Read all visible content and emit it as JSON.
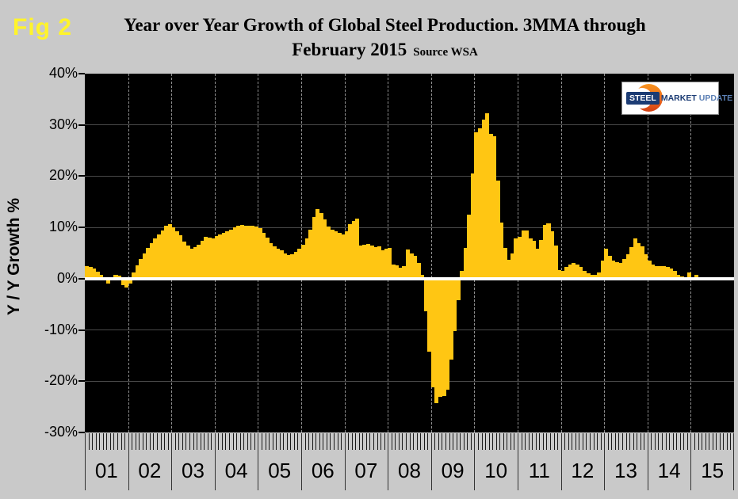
{
  "figure_label": "Fig 2",
  "title": {
    "line1": "Year over Year Growth of Global Steel Production. 3MMA through",
    "line2": "February 2015",
    "source": "Source WSA"
  },
  "logo": {
    "steel": "STEEL",
    "market": "MARKET",
    "update": "UPDATE"
  },
  "colors": {
    "page_bg": "#C9C9C9",
    "plot_bg": "#000000",
    "bar": "#FFC613",
    "zero_line": "#FFFFFF",
    "grid": "#4A4A4A",
    "year_dash": "#8F8F8F",
    "fig_label": "#FFF42A",
    "logo_navy": "#1C3C74",
    "logo_update_blue": "#5C80B5",
    "logo_orange": "#EE6A1E"
  },
  "chart_data": {
    "type": "bar",
    "title": "Year over Year Growth of Global Steel Production. 3MMA through February 2015",
    "subtitle_source": "Source WSA",
    "xlabel": "",
    "ylabel": "Y / Y Growth %",
    "ylim": [
      -30,
      40
    ],
    "y_ticks": [
      {
        "label": "40%",
        "value": 40
      },
      {
        "label": "30%",
        "value": 30
      },
      {
        "label": "20%",
        "value": 20
      },
      {
        "label": "10%",
        "value": 10
      },
      {
        "label": "0%",
        "value": 0
      },
      {
        "label": "-10%",
        "value": -10
      },
      {
        "label": "-20%",
        "value": -20
      },
      {
        "label": "-30%",
        "value": -30
      }
    ],
    "grid": "horizontal 10% lines, dashed vertical year separators",
    "legend": "none",
    "frequency": "monthly (3-month moving average), Jan 2001 - Feb 2015",
    "unit": "percent YoY growth",
    "years": [
      {
        "label": "01",
        "values": [
          2.4,
          2.3,
          2.0,
          1.4,
          0.8,
          0.2,
          -1.0,
          -0.4,
          0.8,
          0.6,
          -1.2,
          -1.7
        ]
      },
      {
        "label": "02",
        "values": [
          -1.0,
          1.2,
          2.6,
          3.8,
          5.0,
          6.0,
          7.0,
          7.9,
          8.7,
          9.4,
          10.3,
          10.6
        ]
      },
      {
        "label": "03",
        "values": [
          10.0,
          9.2,
          8.4,
          7.2,
          6.4,
          5.9,
          6.1,
          6.6,
          7.4,
          8.2,
          8.0,
          7.9
        ]
      },
      {
        "label": "04",
        "values": [
          8.3,
          8.6,
          8.9,
          9.2,
          9.6,
          10.0,
          10.4,
          10.5,
          10.4,
          10.4,
          10.3,
          10.2
        ]
      },
      {
        "label": "05",
        "values": [
          9.8,
          9.0,
          8.0,
          7.0,
          6.3,
          5.8,
          5.5,
          5.0,
          4.6,
          4.8,
          5.3,
          5.8
        ]
      },
      {
        "label": "06",
        "values": [
          6.6,
          7.8,
          9.6,
          12.0,
          13.5,
          12.8,
          11.5,
          10.2,
          9.5,
          9.2,
          8.9,
          8.7
        ]
      },
      {
        "label": "07",
        "values": [
          9.2,
          10.6,
          11.3,
          11.7,
          6.5,
          6.6,
          6.8,
          6.5,
          6.1,
          6.3,
          5.5,
          5.8
        ]
      },
      {
        "label": "08",
        "values": [
          6.0,
          2.8,
          2.6,
          2.2,
          2.4,
          5.7,
          4.9,
          4.4,
          3.0,
          0.8,
          -6.3,
          -14.2
        ]
      },
      {
        "label": "09",
        "values": [
          -21.2,
          -24.3,
          -23.1,
          -22.9,
          -21.7,
          -15.8,
          -10.2,
          -4.2,
          1.5,
          6.0,
          12.5,
          20.5
        ]
      },
      {
        "label": "10",
        "values": [
          28.5,
          29.3,
          31.0,
          32.3,
          28.2,
          27.8,
          19.2,
          10.9,
          6.0,
          3.7,
          5.0,
          7.9
        ]
      },
      {
        "label": "11",
        "values": [
          8.2,
          9.4,
          9.4,
          7.9,
          7.4,
          5.8,
          7.6,
          10.5,
          10.8,
          9.2,
          6.4,
          1.7
        ]
      },
      {
        "label": "12",
        "values": [
          1.5,
          2.3,
          2.8,
          3.1,
          2.8,
          2.3,
          1.5,
          1.0,
          0.7,
          0.8,
          1.2,
          3.5
        ]
      },
      {
        "label": "13",
        "values": [
          5.8,
          4.5,
          3.6,
          3.2,
          3.0,
          3.9,
          4.8,
          6.2,
          7.8,
          7.0,
          6.3,
          4.8
        ]
      },
      {
        "label": "14",
        "values": [
          3.5,
          2.7,
          2.5,
          2.5,
          2.5,
          2.3,
          2.0,
          1.5,
          0.8,
          0.4,
          0.3,
          1.2
        ]
      },
      {
        "label": "15",
        "values": [
          0.3,
          0.8
        ]
      }
    ]
  }
}
